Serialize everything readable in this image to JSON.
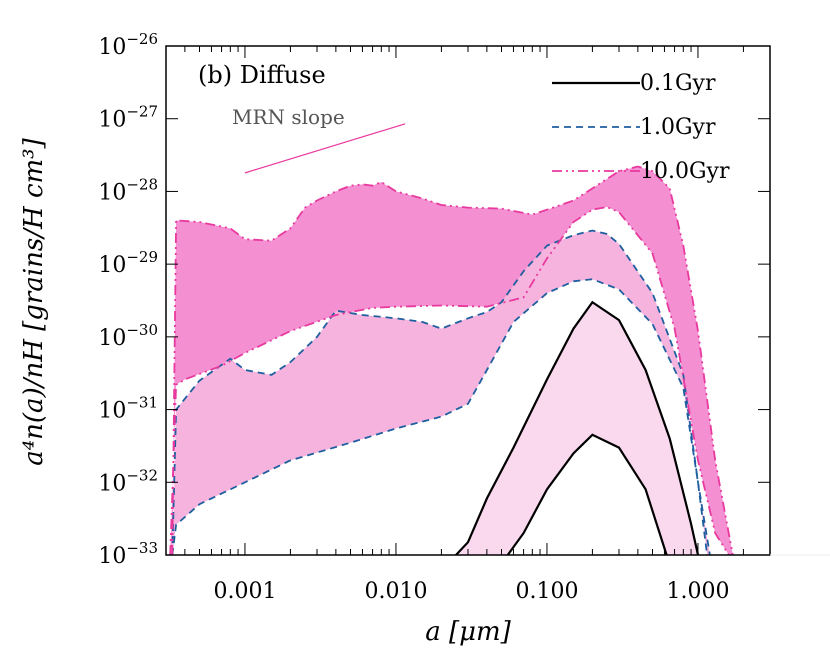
{
  "chart_data": {
    "type": "area",
    "panel_label": "(b) Diffuse",
    "xlabel": "a [μm]",
    "ylabel": "a⁴n(a)/nH [grains/H cm³]",
    "xscale": "log",
    "yscale": "log",
    "xlim": [
      0.0003,
      3.0
    ],
    "ylim": [
      1e-33,
      1e-26
    ],
    "x_ticks": [
      0.001,
      0.01,
      0.1,
      1.0
    ],
    "x_tick_labels": [
      "0.001",
      "0.010",
      "0.100",
      "1.000"
    ],
    "y_ticks": [
      1e-33,
      1e-32,
      1e-31,
      1e-30,
      1e-29,
      1e-28,
      1e-27,
      1e-26
    ],
    "y_tick_base": "10",
    "y_tick_exponents": [
      "−33",
      "−32",
      "−31",
      "−30",
      "−29",
      "−28",
      "−27",
      "−26"
    ],
    "legend_position": "top-right",
    "legend": [
      {
        "label": "0.1Gyr",
        "color": "#000000",
        "dash": "solid"
      },
      {
        "label": "1.0Gyr",
        "color": "#1f5fa0",
        "dash": "dashed"
      },
      {
        "label": "10.0Gyr",
        "color": "#e8399e",
        "dash": "dash-dot-dot"
      }
    ],
    "annotation": {
      "text": "MRN slope",
      "x1": 0.001,
      "y1": 1.8e-28,
      "x2": 0.0115,
      "y2": 8.5e-28,
      "color": "#e8399e"
    },
    "series": [
      {
        "color": "#000000",
        "dash": "solid",
        "band_color": "#fad9ef",
        "lower": {
          "x": [
            0.055,
            0.07,
            0.1,
            0.15,
            0.2,
            0.3,
            0.45,
            0.62
          ],
          "y": [
            1e-33,
            2e-33,
            8e-33,
            2.5e-32,
            4.5e-32,
            3e-32,
            8e-33,
            1e-33
          ]
        },
        "upper": {
          "x": [
            0.025,
            0.03,
            0.04,
            0.06,
            0.1,
            0.15,
            0.2,
            0.3,
            0.45,
            0.65,
            0.9,
            1.0
          ],
          "y": [
            1e-33,
            1.5e-33,
            6e-33,
            3e-32,
            2.6e-31,
            1.3e-30,
            3e-30,
            1.7e-30,
            3.5e-31,
            4e-32,
            2.7e-33,
            1e-33
          ]
        }
      },
      {
        "color": "#1f5fa0",
        "dash": "dashed",
        "band_color": "#f6b3dd",
        "lower": {
          "x": [
            0.00033,
            0.00035,
            0.0005,
            0.001,
            0.002,
            0.005,
            0.01,
            0.02,
            0.03,
            0.04,
            0.06,
            0.1,
            0.15,
            0.2,
            0.3,
            0.5,
            0.8,
            1.0,
            1.15
          ],
          "y": [
            1e-33,
            2.6e-33,
            5e-33,
            1e-32,
            2e-32,
            3.5e-32,
            5.5e-32,
            8e-32,
            1.2e-31,
            3.5e-31,
            1.6e-30,
            4e-30,
            5.8e-30,
            6.2e-30,
            4.5e-30,
            1.5e-30,
            2e-31,
            1e-32,
            1e-33
          ]
        },
        "upper": {
          "x": [
            0.00033,
            0.00035,
            0.0005,
            0.0008,
            0.001,
            0.0015,
            0.002,
            0.003,
            0.004,
            0.006,
            0.01,
            0.015,
            0.02,
            0.03,
            0.04,
            0.05,
            0.07,
            0.1,
            0.15,
            0.2,
            0.25,
            0.3,
            0.5,
            0.8,
            1.0,
            1.2
          ],
          "y": [
            1e-33,
            1e-31,
            2.5e-31,
            5e-31,
            3.5e-31,
            3e-31,
            4.5e-31,
            1e-30,
            2.3e-30,
            2e-30,
            1.8e-30,
            1.6e-30,
            1.3e-30,
            1.8e-30,
            2.2e-30,
            3e-30,
            8e-30,
            1.8e-29,
            2.5e-29,
            2.9e-29,
            2.6e-29,
            1.9e-29,
            4e-30,
            3e-31,
            1e-32,
            1e-33
          ]
        }
      },
      {
        "color": "#e8399e",
        "dash": "dash-dot-dot",
        "band_color": "#f48fd1",
        "lower": {
          "x": [
            0.00032,
            0.00035,
            0.0004,
            0.0007,
            0.001,
            0.002,
            0.004,
            0.007,
            0.01,
            0.02,
            0.04,
            0.07,
            0.1,
            0.15,
            0.2,
            0.25,
            0.3,
            0.5,
            0.7,
            1.0,
            1.3,
            1.6
          ],
          "y": [
            1e-33,
            2.2e-31,
            2.6e-31,
            4e-31,
            6e-31,
            1.2e-30,
            2e-30,
            2.5e-30,
            2.6e-30,
            2.7e-30,
            2.6e-30,
            3.5e-30,
            1.2e-29,
            3.8e-29,
            5.6e-29,
            6.1e-29,
            5.2e-29,
            1.4e-29,
            1.3e-30,
            2e-32,
            2e-33,
            1e-33
          ]
        },
        "upper": {
          "x": [
            0.00033,
            0.00035,
            0.0005,
            0.0008,
            0.001,
            0.0015,
            0.002,
            0.0025,
            0.003,
            0.004,
            0.005,
            0.006,
            0.007,
            0.008,
            0.01,
            0.015,
            0.02,
            0.03,
            0.05,
            0.08,
            0.1,
            0.15,
            0.2,
            0.3,
            0.4,
            0.5,
            0.65,
            0.8,
            1.0,
            1.3,
            1.7
          ],
          "y": [
            1e-33,
            4e-29,
            3.8e-29,
            3.1e-29,
            2.2e-29,
            2.1e-29,
            3.1e-29,
            6e-29,
            7.5e-29,
            1e-28,
            1.2e-28,
            1.25e-28,
            1.2e-28,
            1.35e-28,
            1e-28,
            8e-29,
            6.5e-29,
            6e-29,
            5.8e-29,
            4.8e-29,
            5.6e-29,
            7.5e-29,
            1.1e-28,
            1.9e-28,
            2.2e-28,
            1.9e-28,
            1.1e-28,
            1.8e-29,
            1.2e-30,
            2e-32,
            1e-33
          ]
        }
      }
    ]
  }
}
